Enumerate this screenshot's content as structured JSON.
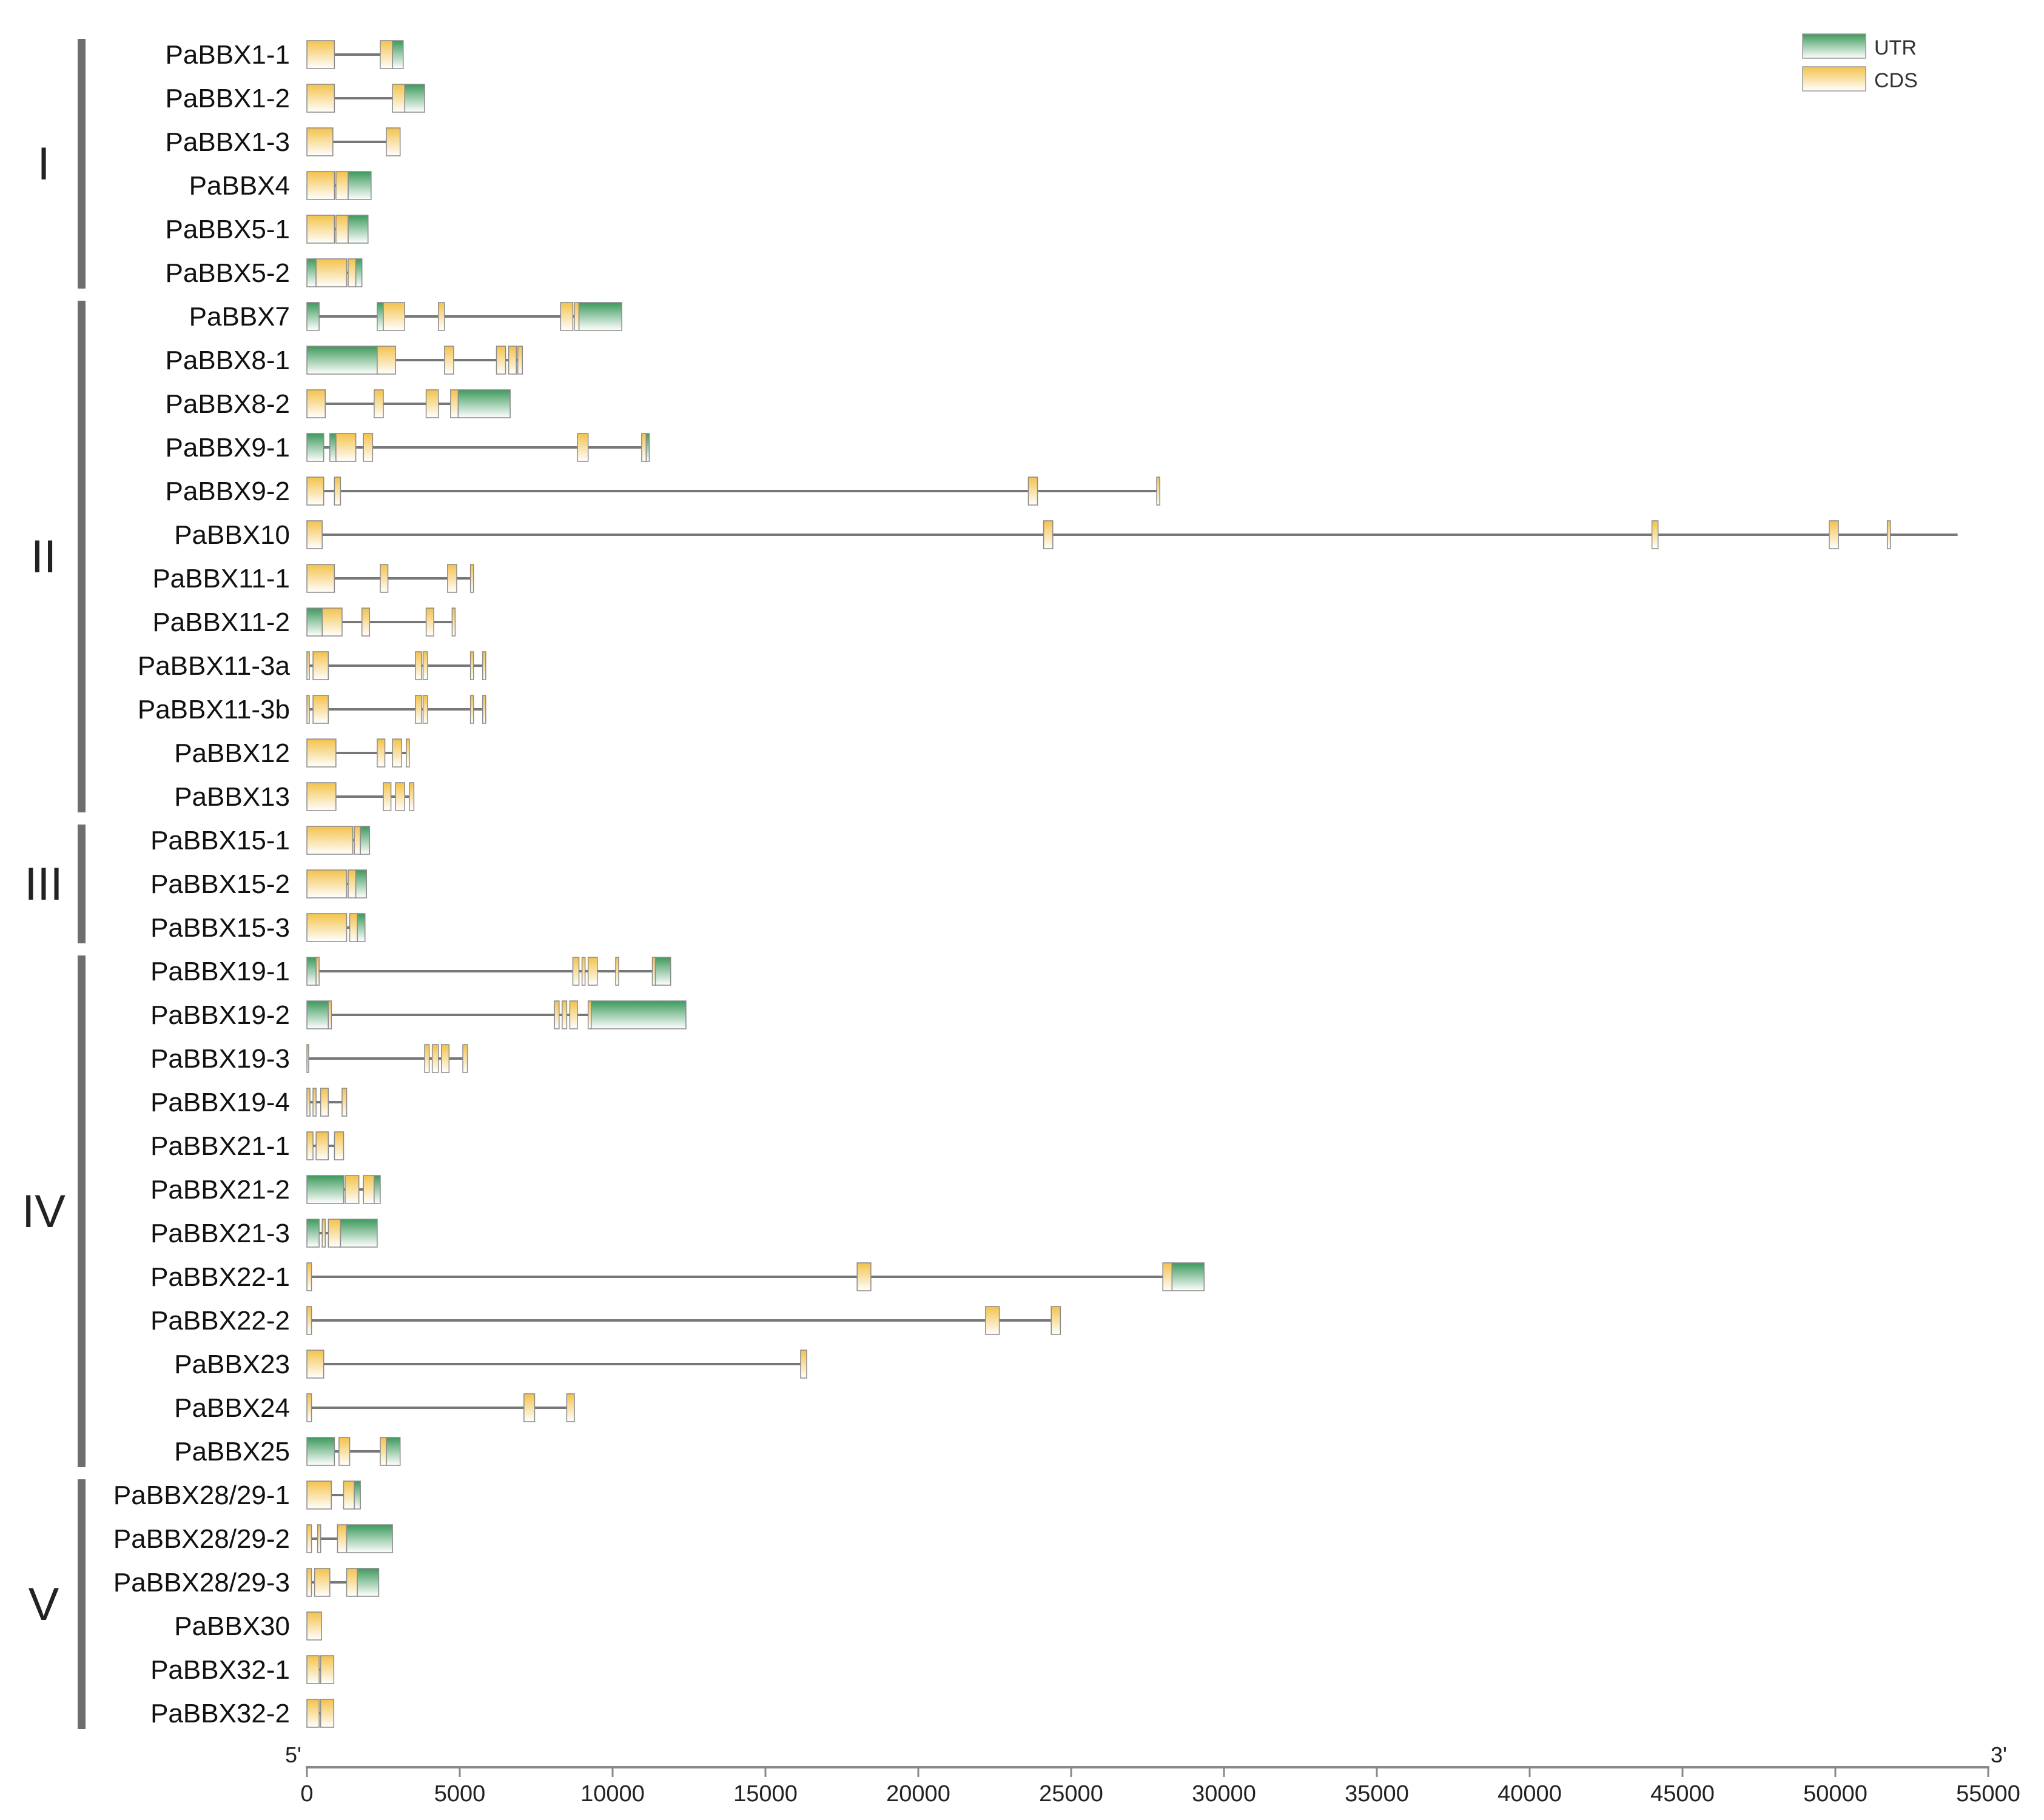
{
  "colors": {
    "utr_top": "#3d9a5c",
    "utr_bottom": "#ffffff",
    "cds_top": "#f3c24a",
    "cds_bottom": "#ffffff",
    "intron": "#777777",
    "group_bar": "#6e6e6e",
    "axis": "#888888"
  },
  "legend": {
    "utr_label": "UTR",
    "cds_label": "CDS"
  },
  "axis": {
    "start_label": "5'",
    "end_label": "3'",
    "min": 0,
    "max": 55000,
    "ticks": [
      0,
      5000,
      10000,
      15000,
      20000,
      25000,
      30000,
      35000,
      40000,
      45000,
      50000,
      55000
    ]
  },
  "groups": [
    {
      "label": "I",
      "first": 0,
      "last": 5
    },
    {
      "label": "II",
      "first": 6,
      "last": 17
    },
    {
      "label": "III",
      "first": 18,
      "last": 20
    },
    {
      "label": "IV",
      "first": 21,
      "last": 32
    },
    {
      "label": "V",
      "first": 33,
      "last": 38
    }
  ],
  "genes": [
    {
      "name": "PaBBX1-1",
      "length": 3150,
      "features": [
        [
          "c",
          0,
          900
        ],
        [
          "c",
          2400,
          2800
        ],
        [
          "u",
          2800,
          3150
        ]
      ]
    },
    {
      "name": "PaBBX1-2",
      "length": 3850,
      "features": [
        [
          "c",
          0,
          900
        ],
        [
          "c",
          2800,
          3200
        ],
        [
          "u",
          3200,
          3850
        ]
      ]
    },
    {
      "name": "PaBBX1-3",
      "length": 3050,
      "features": [
        [
          "c",
          0,
          850
        ],
        [
          "c",
          2600,
          3050
        ]
      ]
    },
    {
      "name": "PaBBX4",
      "length": 2100,
      "features": [
        [
          "c",
          0,
          900
        ],
        [
          "c",
          950,
          1350
        ],
        [
          "u",
          1350,
          2100
        ]
      ]
    },
    {
      "name": "PaBBX5-1",
      "length": 2000,
      "features": [
        [
          "c",
          0,
          900
        ],
        [
          "c",
          950,
          1350
        ],
        [
          "u",
          1350,
          2000
        ]
      ]
    },
    {
      "name": "PaBBX5-2",
      "length": 1800,
      "features": [
        [
          "u",
          0,
          300
        ],
        [
          "c",
          300,
          1300
        ],
        [
          "c",
          1350,
          1600
        ],
        [
          "u",
          1600,
          1800
        ]
      ]
    },
    {
      "name": "PaBBX7",
      "length": 10300,
      "features": [
        [
          "u",
          0,
          400
        ],
        [
          "u",
          2300,
          2500
        ],
        [
          "c",
          2500,
          3200
        ],
        [
          "c",
          4300,
          4500
        ],
        [
          "c",
          8300,
          8700
        ],
        [
          "c",
          8750,
          8900
        ],
        [
          "u",
          8900,
          10300
        ]
      ]
    },
    {
      "name": "PaBBX8-1",
      "length": 7050,
      "features": [
        [
          "u",
          0,
          2300
        ],
        [
          "c",
          2300,
          2900
        ],
        [
          "c",
          4500,
          4800
        ],
        [
          "c",
          6200,
          6500
        ],
        [
          "c",
          6600,
          6850
        ],
        [
          "c",
          6900,
          7050
        ]
      ]
    },
    {
      "name": "PaBBX8-2",
      "length": 6650,
      "features": [
        [
          "c",
          0,
          600
        ],
        [
          "c",
          2200,
          2500
        ],
        [
          "c",
          3900,
          4300
        ],
        [
          "c",
          4700,
          4950
        ],
        [
          "u",
          4950,
          6650
        ]
      ]
    },
    {
      "name": "PaBBX9-1",
      "length": 11200,
      "features": [
        [
          "u",
          0,
          550
        ],
        [
          "u",
          750,
          950
        ],
        [
          "c",
          950,
          1600
        ],
        [
          "c",
          1850,
          2150
        ],
        [
          "c",
          8850,
          9200
        ],
        [
          "c",
          10950,
          11100
        ],
        [
          "u",
          11100,
          11200
        ]
      ]
    },
    {
      "name": "PaBBX9-2",
      "length": 27900,
      "features": [
        [
          "c",
          0,
          550
        ],
        [
          "c",
          900,
          1100
        ],
        [
          "c",
          23600,
          23900
        ],
        [
          "c",
          27800,
          27900
        ]
      ]
    },
    {
      "name": "PaBBX10",
      "length": 54000,
      "features": [
        [
          "c",
          0,
          500
        ],
        [
          "c",
          24100,
          24400
        ],
        [
          "c",
          44000,
          44200
        ],
        [
          "c",
          49800,
          50100
        ],
        [
          "c",
          51700,
          51800
        ]
      ]
    },
    {
      "name": "PaBBX11-1",
      "length": 5450,
      "features": [
        [
          "c",
          0,
          900
        ],
        [
          "c",
          2400,
          2650
        ],
        [
          "c",
          4600,
          4900
        ],
        [
          "c",
          5350,
          5450
        ]
      ]
    },
    {
      "name": "PaBBX11-2",
      "length": 4850,
      "features": [
        [
          "u",
          0,
          500
        ],
        [
          "c",
          500,
          1150
        ],
        [
          "c",
          1800,
          2050
        ],
        [
          "c",
          3900,
          4150
        ],
        [
          "c",
          4750,
          4850
        ]
      ]
    },
    {
      "name": "PaBBX11-3a",
      "length": 5850,
      "features": [
        [
          "c",
          0,
          80
        ],
        [
          "c",
          200,
          700
        ],
        [
          "c",
          3550,
          3750
        ],
        [
          "c",
          3800,
          3950
        ],
        [
          "c",
          5350,
          5450
        ],
        [
          "c",
          5750,
          5850
        ]
      ]
    },
    {
      "name": "PaBBX11-3b",
      "length": 5850,
      "features": [
        [
          "c",
          0,
          80
        ],
        [
          "c",
          200,
          700
        ],
        [
          "c",
          3550,
          3750
        ],
        [
          "c",
          3800,
          3950
        ],
        [
          "c",
          5350,
          5450
        ],
        [
          "c",
          5750,
          5850
        ]
      ]
    },
    {
      "name": "PaBBX12",
      "length": 3350,
      "features": [
        [
          "c",
          0,
          950
        ],
        [
          "c",
          2300,
          2550
        ],
        [
          "c",
          2800,
          3100
        ],
        [
          "c",
          3250,
          3350
        ]
      ]
    },
    {
      "name": "PaBBX13",
      "length": 3500,
      "features": [
        [
          "c",
          0,
          950
        ],
        [
          "c",
          2500,
          2750
        ],
        [
          "c",
          2900,
          3200
        ],
        [
          "c",
          3350,
          3500
        ]
      ]
    },
    {
      "name": "PaBBX15-1",
      "length": 2050,
      "features": [
        [
          "c",
          0,
          1500
        ],
        [
          "c",
          1550,
          1750
        ],
        [
          "u",
          1750,
          2050
        ]
      ]
    },
    {
      "name": "PaBBX15-2",
      "length": 1950,
      "features": [
        [
          "c",
          0,
          1300
        ],
        [
          "c",
          1350,
          1600
        ],
        [
          "u",
          1600,
          1950
        ]
      ]
    },
    {
      "name": "PaBBX15-3",
      "length": 1900,
      "features": [
        [
          "c",
          0,
          1300
        ],
        [
          "c",
          1400,
          1650
        ],
        [
          "u",
          1650,
          1900
        ]
      ]
    },
    {
      "name": "PaBBX19-1",
      "length": 11900,
      "features": [
        [
          "u",
          0,
          300
        ],
        [
          "c",
          300,
          400
        ],
        [
          "c",
          8700,
          8900
        ],
        [
          "c",
          9000,
          9100
        ],
        [
          "c",
          9200,
          9500
        ],
        [
          "c",
          10100,
          10200
        ],
        [
          "c",
          11300,
          11400
        ],
        [
          "u",
          11400,
          11900
        ]
      ]
    },
    {
      "name": "PaBBX19-2",
      "length": 12400,
      "features": [
        [
          "u",
          0,
          700
        ],
        [
          "c",
          700,
          800
        ],
        [
          "c",
          8100,
          8250
        ],
        [
          "c",
          8350,
          8500
        ],
        [
          "c",
          8600,
          8850
        ],
        [
          "c",
          9200,
          9300
        ],
        [
          "u",
          9300,
          12400
        ]
      ]
    },
    {
      "name": "PaBBX19-3",
      "length": 5250,
      "features": [
        [
          "c",
          0,
          50
        ],
        [
          "c",
          3850,
          4000
        ],
        [
          "c",
          4100,
          4300
        ],
        [
          "c",
          4400,
          4650
        ],
        [
          "c",
          5100,
          5250
        ]
      ]
    },
    {
      "name": "PaBBX19-4",
      "length": 1300,
      "features": [
        [
          "c",
          0,
          100
        ],
        [
          "c",
          200,
          300
        ],
        [
          "c",
          450,
          700
        ],
        [
          "c",
          1150,
          1300
        ]
      ]
    },
    {
      "name": "PaBBX21-1",
      "length": 1200,
      "features": [
        [
          "c",
          0,
          200
        ],
        [
          "c",
          300,
          700
        ],
        [
          "c",
          900,
          1200
        ]
      ]
    },
    {
      "name": "PaBBX21-2",
      "length": 2400,
      "features": [
        [
          "u",
          0,
          1200
        ],
        [
          "c",
          1250,
          1700
        ],
        [
          "c",
          1850,
          2200
        ],
        [
          "u",
          2200,
          2400
        ]
      ]
    },
    {
      "name": "PaBBX21-3",
      "length": 2300,
      "features": [
        [
          "u",
          0,
          400
        ],
        [
          "c",
          500,
          600
        ],
        [
          "c",
          700,
          1100
        ],
        [
          "u",
          1100,
          2300
        ]
      ]
    },
    {
      "name": "PaBBX22-1",
      "length": 29350,
      "features": [
        [
          "c",
          0,
          150
        ],
        [
          "c",
          18000,
          18450
        ],
        [
          "c",
          28000,
          28300
        ],
        [
          "u",
          28300,
          29350
        ]
      ]
    },
    {
      "name": "PaBBX22-2",
      "length": 24650,
      "features": [
        [
          "c",
          0,
          150
        ],
        [
          "c",
          22200,
          22650
        ],
        [
          "c",
          24350,
          24650
        ]
      ]
    },
    {
      "name": "PaBBX23",
      "length": 16350,
      "features": [
        [
          "c",
          0,
          550
        ],
        [
          "c",
          16150,
          16350
        ]
      ]
    },
    {
      "name": "PaBBX24",
      "length": 8750,
      "features": [
        [
          "c",
          0,
          150
        ],
        [
          "c",
          7100,
          7450
        ],
        [
          "c",
          8500,
          8750
        ]
      ]
    },
    {
      "name": "PaBBX25",
      "length": 3050,
      "features": [
        [
          "u",
          0,
          900
        ],
        [
          "c",
          1050,
          1400
        ],
        [
          "c",
          2400,
          2600
        ],
        [
          "u",
          2600,
          3050
        ]
      ]
    },
    {
      "name": "PaBBX28/29-1",
      "length": 1750,
      "features": [
        [
          "c",
          0,
          800
        ],
        [
          "c",
          1200,
          1550
        ],
        [
          "u",
          1550,
          1750
        ]
      ]
    },
    {
      "name": "PaBBX28/29-2",
      "length": 2800,
      "features": [
        [
          "c",
          0,
          150
        ],
        [
          "c",
          350,
          450
        ],
        [
          "c",
          1000,
          1300
        ],
        [
          "u",
          1300,
          2800
        ]
      ]
    },
    {
      "name": "PaBBX28/29-3",
      "length": 2350,
      "features": [
        [
          "c",
          0,
          150
        ],
        [
          "c",
          250,
          750
        ],
        [
          "c",
          1300,
          1650
        ],
        [
          "u",
          1650,
          2350
        ]
      ]
    },
    {
      "name": "PaBBX30",
      "length": 480,
      "features": [
        [
          "c",
          0,
          480
        ]
      ]
    },
    {
      "name": "PaBBX32-1",
      "length": 880,
      "features": [
        [
          "c",
          0,
          400
        ],
        [
          "c",
          450,
          880
        ]
      ]
    },
    {
      "name": "PaBBX32-2",
      "length": 880,
      "features": [
        [
          "c",
          0,
          400
        ],
        [
          "c",
          450,
          880
        ]
      ]
    }
  ]
}
